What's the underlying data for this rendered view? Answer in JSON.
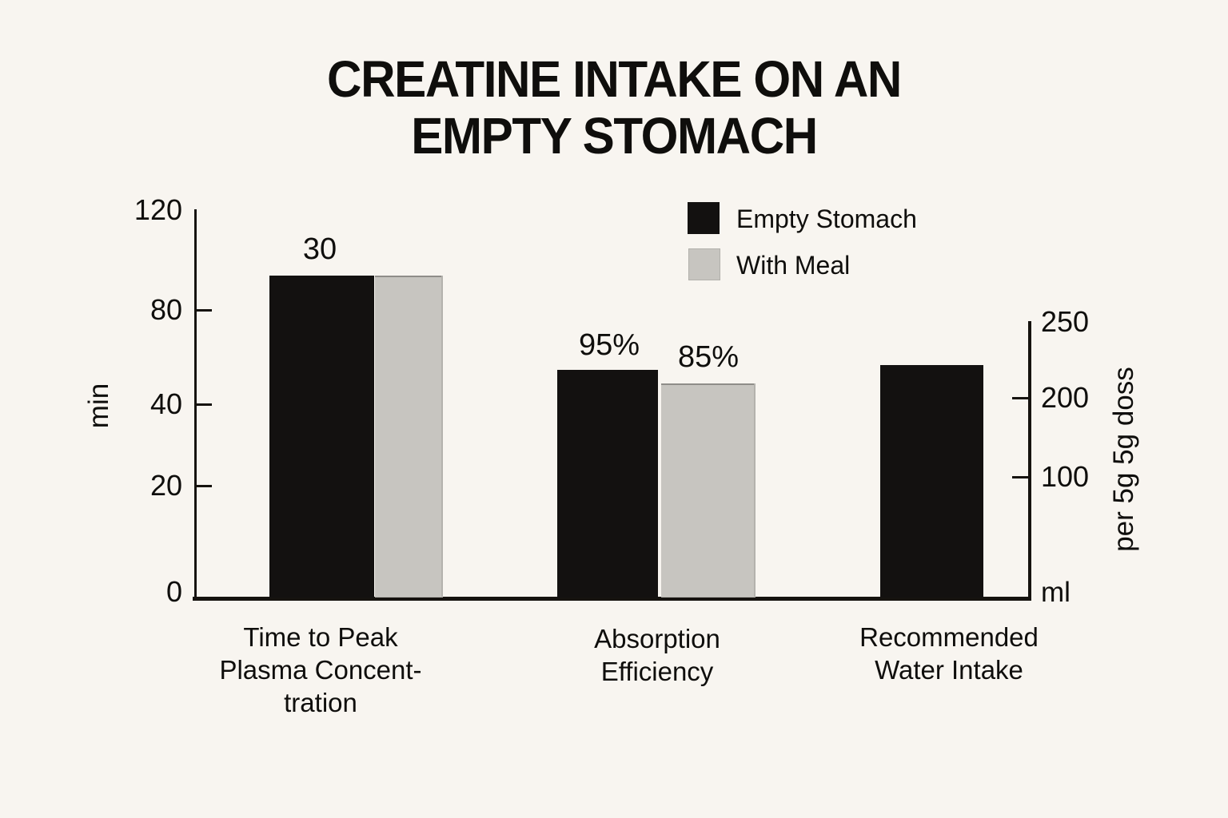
{
  "title": {
    "line1": "CREATINE INTAKE ON AN",
    "line2": "EMPTY STOMACH"
  },
  "left_axis": {
    "unit": "min",
    "ticks": [
      "120",
      "80",
      "40",
      "20",
      "0"
    ]
  },
  "right_axis": {
    "ticks": [
      "250",
      "200",
      "100"
    ],
    "unit_bottom": "ml",
    "unit_side": "per 5g 5g doss"
  },
  "category_labels": [
    "Time to Peak\nPlasma Concent-\ntration",
    "Absorption\nEfficiency",
    "Recommended\nWater Intake"
  ],
  "colors": {
    "background": "#f8f5f0",
    "bar_black": "#131110",
    "bar_gray": "#c7c5c0",
    "axis": "#16130f",
    "text": "#0f0e0c"
  },
  "chart_data": {
    "type": "bar",
    "title": "CREATINE INTAKE ON AN EMPTY STOMACH",
    "categories": [
      "Time to Peak Plasma Concent-tration",
      "Absorption Efficiency",
      "Recommended Water Intake"
    ],
    "series": [
      {
        "name": "Empty Stomach",
        "color": "#131110",
        "values": [
          30,
          95,
          220
        ],
        "value_labels": [
          "30",
          "95%",
          null
        ]
      },
      {
        "name": "With Meal",
        "color": "#c7c5c0",
        "values": [
          30,
          85,
          null
        ],
        "value_labels": [
          null,
          "85%",
          null
        ]
      }
    ],
    "units_per_category": [
      "min",
      "%",
      "ml"
    ],
    "left_axis": {
      "label": "min",
      "tick_values": [
        0,
        20,
        40,
        80,
        120
      ],
      "ticks_top_to_bottom": [
        "120",
        "80",
        "40",
        "20",
        "0"
      ]
    },
    "right_axis": {
      "label": "per 5g 5g doss",
      "unit": "ml",
      "tick_values": [
        100,
        200,
        250
      ],
      "ticks_top_to_bottom": [
        "250",
        "200",
        "100"
      ]
    },
    "legend_position": "top-right",
    "grid": false,
    "notes": "Third bar (~220 ml) unlabeled, read against right axis; group 1 bars drawn equal height with only black bar labeled 30."
  }
}
